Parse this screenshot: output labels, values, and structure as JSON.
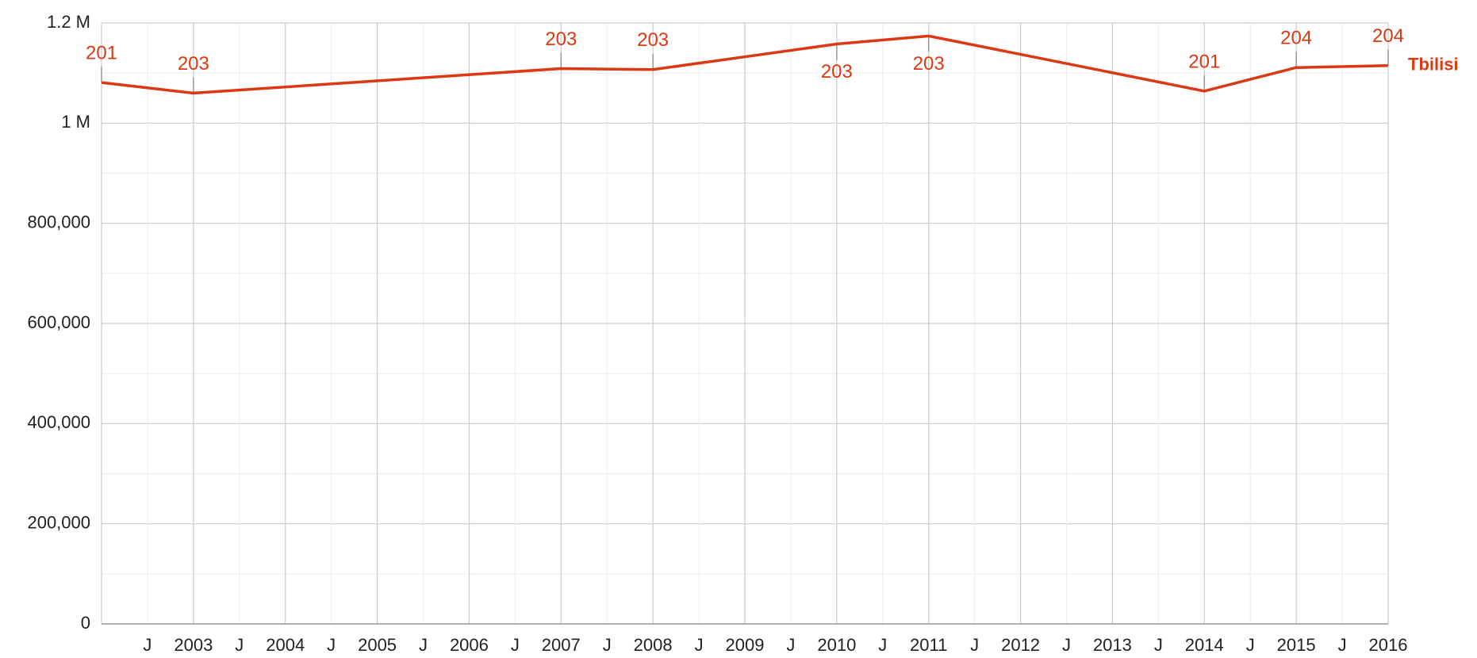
{
  "chart_data": {
    "type": "line",
    "x": [
      2002,
      2003,
      2007,
      2008,
      2010,
      2011,
      2014,
      2015,
      2016
    ],
    "series": [
      {
        "name": "Tbilisi",
        "color": "#dc3912",
        "values": [
          1081000,
          1060000,
          1109000,
          1107000,
          1158000,
          1174000,
          1064000,
          1111000,
          1115000
        ]
      }
    ],
    "annotations": [
      {
        "x": 2002,
        "text": "201",
        "placement": "above"
      },
      {
        "x": 2003,
        "text": "203",
        "placement": "above"
      },
      {
        "x": 2007,
        "text": "203",
        "placement": "above"
      },
      {
        "x": 2008,
        "text": "203",
        "placement": "above"
      },
      {
        "x": 2010,
        "text": "203",
        "placement": "below"
      },
      {
        "x": 2011,
        "text": "203",
        "placement": "below"
      },
      {
        "x": 2014,
        "text": "201",
        "placement": "above"
      },
      {
        "x": 2015,
        "text": "204",
        "placement": "above"
      },
      {
        "x": 2016,
        "text": "204",
        "placement": "above"
      }
    ],
    "xlim": [
      2002,
      2016
    ],
    "xticks": [
      {
        "value": 2002.5,
        "label": "J"
      },
      2003,
      {
        "value": 2003.5,
        "label": "J"
      },
      2004,
      {
        "value": 2004.5,
        "label": "J"
      },
      2005,
      {
        "value": 2005.5,
        "label": "J"
      },
      2006,
      {
        "value": 2006.5,
        "label": "J"
      },
      2007,
      {
        "value": 2007.5,
        "label": "J"
      },
      2008,
      {
        "value": 2008.5,
        "label": "J"
      },
      2009,
      {
        "value": 2009.5,
        "label": "J"
      },
      2010,
      {
        "value": 2010.5,
        "label": "J"
      },
      2011,
      {
        "value": 2011.5,
        "label": "J"
      },
      2012,
      {
        "value": 2012.5,
        "label": "J"
      },
      2013,
      {
        "value": 2013.5,
        "label": "J"
      },
      2014,
      {
        "value": 2014.5,
        "label": "J"
      },
      2015,
      {
        "value": 2015.5,
        "label": "J"
      },
      2016
    ],
    "ylim": [
      0,
      1200000
    ],
    "yticks": [
      0,
      {
        "value": 200000,
        "label": "200,000"
      },
      {
        "value": 400000,
        "label": "400,000"
      },
      {
        "value": 600000,
        "label": "600,000"
      },
      {
        "value": 800000,
        "label": "800,000"
      },
      {
        "value": 1000000,
        "label": "1 M"
      },
      {
        "value": 1200000,
        "label": "1.2 M"
      }
    ],
    "grid": true
  }
}
